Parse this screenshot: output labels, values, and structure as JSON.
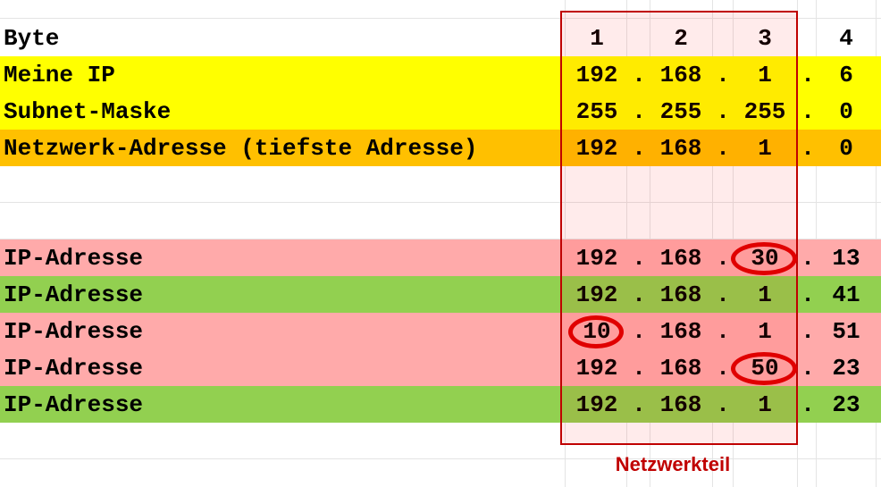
{
  "header": {
    "label": "Byte",
    "b1": "1",
    "b2": "2",
    "b3": "3",
    "b4": "4"
  },
  "rows": [
    {
      "label": "Meine IP",
      "bytes": [
        "192",
        "168",
        "1",
        "6"
      ],
      "fill": "#ffff00"
    },
    {
      "label": "Subnet-Maske",
      "bytes": [
        "255",
        "255",
        "255",
        "0"
      ],
      "fill": "#ffff00"
    },
    {
      "label": "Netzwerk-Adresse (tiefste Adresse)",
      "bytes": [
        "192",
        "168",
        "1",
        "0"
      ],
      "fill": "#ffc000"
    },
    {
      "label": "IP-Adresse",
      "bytes": [
        "192",
        "168",
        "30",
        "13"
      ],
      "fill": "#ffaaaa",
      "circled": "b3"
    },
    {
      "label": "IP-Adresse",
      "bytes": [
        "192",
        "168",
        "1",
        "41"
      ],
      "fill": "#92d050"
    },
    {
      "label": "IP-Adresse",
      "bytes": [
        "10",
        "168",
        "1",
        "51"
      ],
      "fill": "#ffaaaa",
      "circled": "b1"
    },
    {
      "label": "IP-Adresse",
      "bytes": [
        "192",
        "168",
        "50",
        "23"
      ],
      "fill": "#ffaaaa",
      "circled": "b3"
    },
    {
      "label": "IP-Adresse",
      "bytes": [
        "192",
        "168",
        "1",
        "23"
      ],
      "fill": "#92d050"
    }
  ],
  "dot": ".",
  "caption": "Netzwerkteil",
  "colors": {
    "accent": "#c00000",
    "yellow": "#ffff00",
    "orange": "#ffc000",
    "red_row": "#ffaaaa",
    "green_row": "#92d050"
  }
}
